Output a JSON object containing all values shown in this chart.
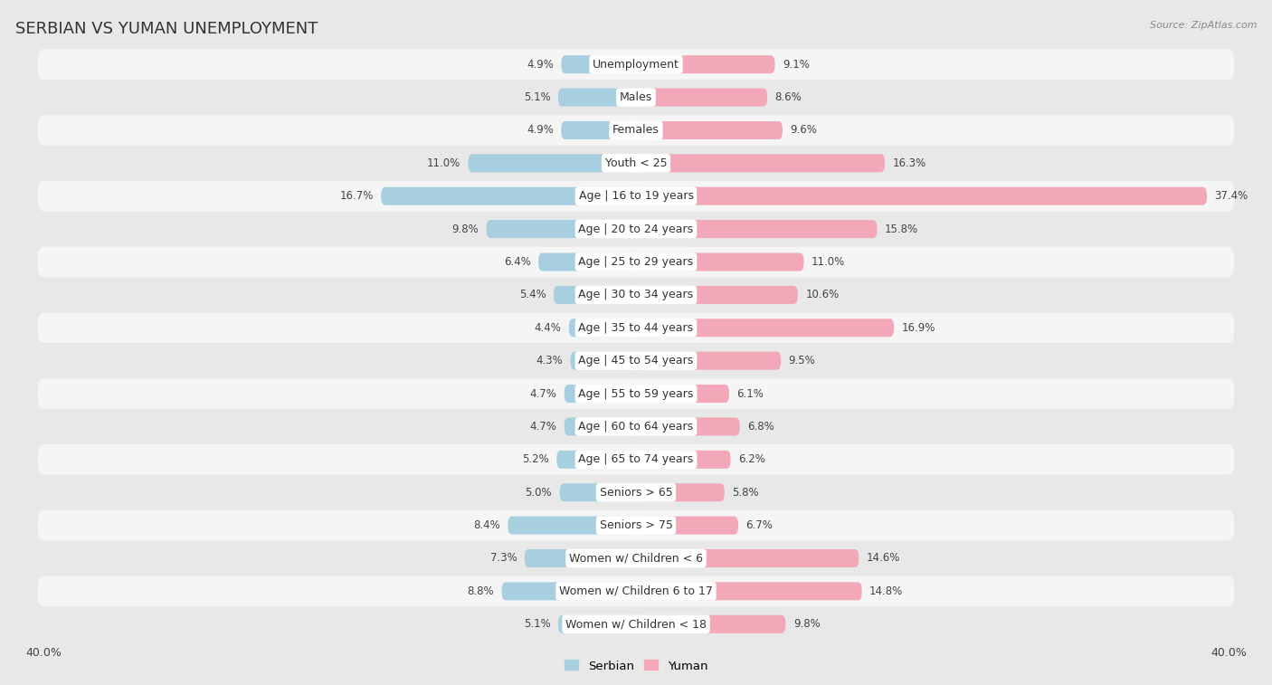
{
  "title": "SERBIAN VS YUMAN UNEMPLOYMENT",
  "source": "Source: ZipAtlas.com",
  "categories": [
    "Unemployment",
    "Males",
    "Females",
    "Youth < 25",
    "Age | 16 to 19 years",
    "Age | 20 to 24 years",
    "Age | 25 to 29 years",
    "Age | 30 to 34 years",
    "Age | 35 to 44 years",
    "Age | 45 to 54 years",
    "Age | 55 to 59 years",
    "Age | 60 to 64 years",
    "Age | 65 to 74 years",
    "Seniors > 65",
    "Seniors > 75",
    "Women w/ Children < 6",
    "Women w/ Children 6 to 17",
    "Women w/ Children < 18"
  ],
  "serbian_values": [
    4.9,
    5.1,
    4.9,
    11.0,
    16.7,
    9.8,
    6.4,
    5.4,
    4.4,
    4.3,
    4.7,
    4.7,
    5.2,
    5.0,
    8.4,
    7.3,
    8.8,
    5.1
  ],
  "yuman_values": [
    9.1,
    8.6,
    9.6,
    16.3,
    37.4,
    15.8,
    11.0,
    10.6,
    16.9,
    9.5,
    6.1,
    6.8,
    6.2,
    5.8,
    6.7,
    14.6,
    14.8,
    9.8
  ],
  "serbian_color": "#a8cfe0",
  "yuman_color": "#f2a8b8",
  "axis_max": 40.0,
  "axis_label": "40.0%",
  "bg_color": "#e8e8e8",
  "row_color_even": "#f5f5f5",
  "row_color_odd": "#e8e8e8",
  "title_fontsize": 13,
  "label_fontsize": 9,
  "value_fontsize": 8.5,
  "legend_fontsize": 9.5,
  "source_fontsize": 8
}
